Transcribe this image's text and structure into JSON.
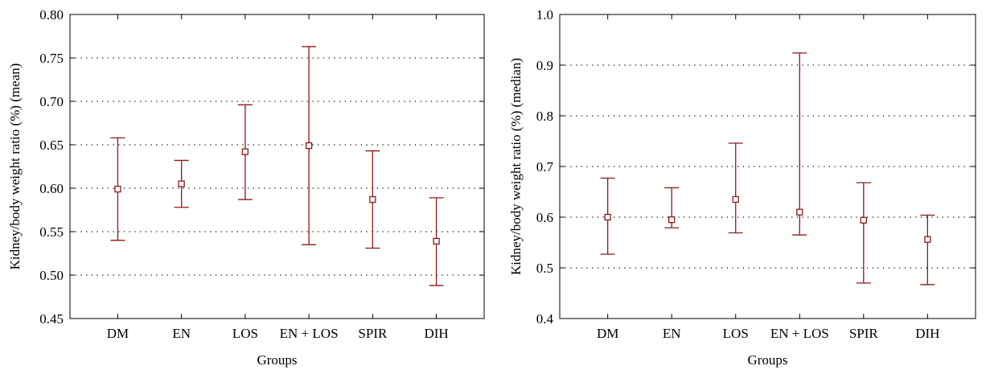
{
  "colors": {
    "series": "#8b1a1a",
    "axis": "#000000",
    "grid": "#000000"
  },
  "chart_data": [
    {
      "type": "scatter",
      "errorbars": true,
      "categories": [
        "DM",
        "EN",
        "LOS",
        "EN + LOS",
        "SPIR",
        "DIH"
      ],
      "values": [
        0.599,
        0.605,
        0.642,
        0.649,
        0.587,
        0.539
      ],
      "lower": [
        0.54,
        0.578,
        0.587,
        0.535,
        0.531,
        0.488
      ],
      "upper": [
        0.658,
        0.632,
        0.696,
        0.763,
        0.643,
        0.589
      ],
      "xlabel": "Groups",
      "ylabel": "Kidney/body weight ratio (%) (mean)",
      "ylim": [
        0.45,
        0.8
      ],
      "yticks": [
        "0.45",
        "0.50",
        "0.55",
        "0.60",
        "0.65",
        "0.70",
        "0.75",
        "0.80"
      ],
      "grid": "horizontal dotted"
    },
    {
      "type": "scatter",
      "errorbars": true,
      "categories": [
        "DM",
        "EN",
        "LOS",
        "EN + LOS",
        "SPIR",
        "DIH"
      ],
      "values": [
        0.6,
        0.595,
        0.635,
        0.61,
        0.594,
        0.556
      ],
      "lower": [
        0.527,
        0.579,
        0.569,
        0.565,
        0.47,
        0.467
      ],
      "upper": [
        0.677,
        0.658,
        0.746,
        0.924,
        0.668,
        0.604
      ],
      "xlabel": "Groups",
      "ylabel": "Kidney/body weight ratio (%) (median)",
      "ylim": [
        0.4,
        1.0
      ],
      "yticks": [
        "0.4",
        "0.5",
        "0.6",
        "0.7",
        "0.8",
        "0.9",
        "1.0"
      ],
      "grid": "horizontal dotted"
    }
  ]
}
